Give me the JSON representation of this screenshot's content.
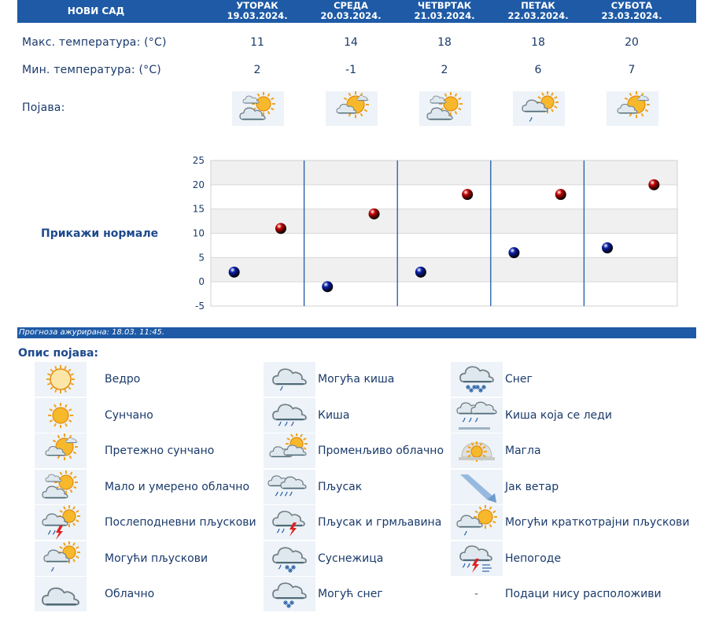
{
  "header": {
    "city": "НОВИ САД",
    "days": [
      {
        "name": "УТОРАК",
        "date": "19.03.2024."
      },
      {
        "name": "СРЕДА",
        "date": "20.03.2024."
      },
      {
        "name": "ЧЕТВРТАК",
        "date": "21.03.2024."
      },
      {
        "name": "ПЕТАК",
        "date": "22.03.2024."
      },
      {
        "name": "СУБОТА",
        "date": "23.03.2024."
      }
    ]
  },
  "rows": {
    "max_label": "Макс. температура: (°C)",
    "min_label": "Мин. температура: (°C)",
    "phen_label": "Појава:",
    "max": [
      "11",
      "14",
      "18",
      "18",
      "20"
    ],
    "min": [
      "2",
      "-1",
      "2",
      "6",
      "7"
    ],
    "phen_icons": [
      "cloud-sun-icon",
      "mostly-sunny-icon",
      "cloud-sun-icon",
      "possible-showers-icon",
      "mostly-sunny-icon"
    ]
  },
  "show_normals": "Прикажи нормале",
  "chart_data": {
    "type": "scatter",
    "title": "",
    "xlabel": "",
    "ylabel": "",
    "ylim": [
      -5,
      25
    ],
    "yticks": [
      "25",
      "20",
      "15",
      "10",
      "5",
      "0",
      "-5"
    ],
    "categories": [
      "19.03.2024.",
      "20.03.2024.",
      "21.03.2024.",
      "22.03.2024.",
      "23.03.2024."
    ],
    "series": [
      {
        "values": [
          2,
          -1,
          2,
          6,
          7
        ],
        "color": "#0a1fa8"
      },
      {
        "values": [
          11,
          14,
          18,
          18,
          20
        ],
        "color": "#c40000"
      }
    ],
    "grid": true
  },
  "updated": "Прогноза ажурирана:  18.03.  11:45.",
  "legend": {
    "title": "Опис појава:",
    "items": [
      {
        "icon": "clear-icon",
        "label": "Ведро"
      },
      {
        "icon": "sunny-icon",
        "label": "Сунчано"
      },
      {
        "icon": "mostly-sunny-icon",
        "label": "Претежно сунчано"
      },
      {
        "icon": "cloud-sun-icon",
        "label": "Мало и умерено облачно"
      },
      {
        "icon": "afternoon-showers-icon",
        "label": "Послеподневни пљускови"
      },
      {
        "icon": "possible-showers-icon",
        "label": "Могући пљускови"
      },
      {
        "icon": "cloudy-icon",
        "label": "Облачно"
      },
      {
        "icon": "possible-rain-icon",
        "label": "Могућа киша"
      },
      {
        "icon": "rain-icon",
        "label": "Киша"
      },
      {
        "icon": "variable-cloudy-icon",
        "label": "Променљиво облачно"
      },
      {
        "icon": "downpour-icon",
        "label": "Пљусак"
      },
      {
        "icon": "thunder-shower-icon",
        "label": "Пљусак и грмљавина"
      },
      {
        "icon": "sleet-icon",
        "label": "Суснежица"
      },
      {
        "icon": "possible-snow-icon",
        "label": "Могућ снег"
      },
      {
        "icon": "snow-icon",
        "label": "Снег"
      },
      {
        "icon": "freezing-rain-icon",
        "label": "Киша која се леди"
      },
      {
        "icon": "fog-icon",
        "label": "Магла"
      },
      {
        "icon": "strong-wind-icon",
        "label": "Јак ветар"
      },
      {
        "icon": "brief-showers-icon",
        "label": "Могући краткотрајни пљускови"
      },
      {
        "icon": "storm-icon",
        "label": "Непогоде"
      },
      {
        "icon": "",
        "label": "Подаци нису расположиви",
        "dash": "-"
      }
    ]
  }
}
